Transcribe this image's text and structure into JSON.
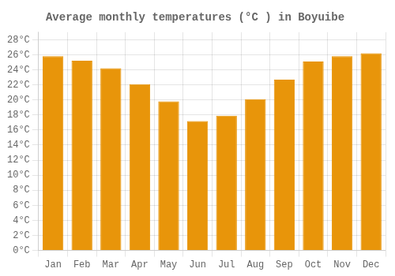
{
  "chart_data": {
    "type": "bar",
    "title": "Average monthly temperatures (°C ) in Boyuibe",
    "categories": [
      "Jan",
      "Feb",
      "Mar",
      "Apr",
      "May",
      "Jun",
      "Jul",
      "Aug",
      "Sep",
      "Oct",
      "Nov",
      "Dec"
    ],
    "values": [
      25.8,
      25.2,
      24.2,
      22.1,
      19.8,
      17.2,
      17.9,
      20.1,
      22.7,
      25.1,
      25.8,
      26.2
    ],
    "color": "#E8950A",
    "ylim": [
      0,
      29
    ],
    "yticks": [
      {
        "value": 0,
        "label": "0°C"
      },
      {
        "value": 2,
        "label": "2°C"
      },
      {
        "value": 4,
        "label": "4°C"
      },
      {
        "value": 6,
        "label": "6°C"
      },
      {
        "value": 8,
        "label": "8°C"
      },
      {
        "value": 10,
        "label": "10°C"
      },
      {
        "value": 12,
        "label": "12°C"
      },
      {
        "value": 14,
        "label": "14°C"
      },
      {
        "value": 16,
        "label": "16°C"
      },
      {
        "value": 18,
        "label": "18°C"
      },
      {
        "value": 20,
        "label": "20°C"
      },
      {
        "value": 22,
        "label": "22°C"
      },
      {
        "value": 24,
        "label": "24°C"
      },
      {
        "value": 26,
        "label": "26°C"
      },
      {
        "value": 28,
        "label": "28°C"
      }
    ],
    "grid": true
  }
}
